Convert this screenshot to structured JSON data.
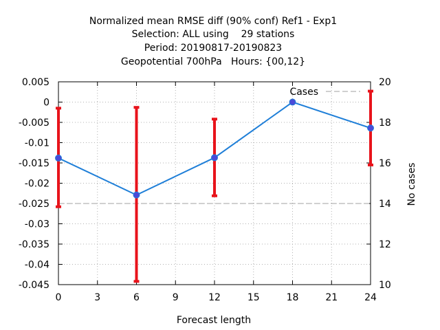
{
  "chart_data": {
    "type": "line",
    "title_lines": [
      "Normalized mean RMSE diff (90% conf) Ref1 - Exp1",
      "Selection: ALL using    29 stations",
      "Period: 20190817-20190823",
      "Geopotential 700hPa   Hours: {00,12}"
    ],
    "xlabel": "Forecast length",
    "ylabel": "",
    "y2label": "No cases",
    "xlim": [
      0,
      24
    ],
    "ylim": [
      -0.045,
      0.005
    ],
    "y2lim": [
      10,
      20
    ],
    "x_ticks": [
      0,
      3,
      6,
      9,
      12,
      15,
      18,
      21,
      24
    ],
    "y_ticks": [
      0.005,
      0,
      -0.005,
      -0.01,
      -0.015,
      -0.02,
      -0.025,
      -0.03,
      -0.035,
      -0.04,
      -0.045
    ],
    "y_tick_labels": [
      "0.005",
      "0",
      "-0.005",
      "-0.01",
      "-0.015",
      "-0.02",
      "-0.025",
      "-0.03",
      "-0.035",
      "-0.04",
      "-0.045"
    ],
    "y2_ticks": [
      20,
      18,
      16,
      14,
      12,
      10
    ],
    "grid": true,
    "legend_position": "top-right",
    "series": [
      {
        "type": "line",
        "x": [
          0,
          6,
          12,
          18,
          24
        ],
        "y": [
          -0.0138,
          -0.0229,
          -0.0137,
          0.0,
          -0.0064
        ],
        "error_low": [
          -0.0258,
          -0.0442,
          -0.0231,
          0.0,
          -0.0155
        ],
        "error_high": [
          -0.0015,
          -0.0013,
          -0.0042,
          0.0,
          0.0027
        ],
        "color": "#1f7fd8",
        "marker_color": "#4a4ad8",
        "error_color": "#e8131b"
      },
      {
        "name": "Cases",
        "type": "line",
        "axis": "y2",
        "x": [
          0,
          6,
          12,
          18,
          24
        ],
        "y": [
          14,
          14,
          14,
          14,
          14
        ],
        "color": "#a0a0a0",
        "dashed": true
      }
    ]
  }
}
